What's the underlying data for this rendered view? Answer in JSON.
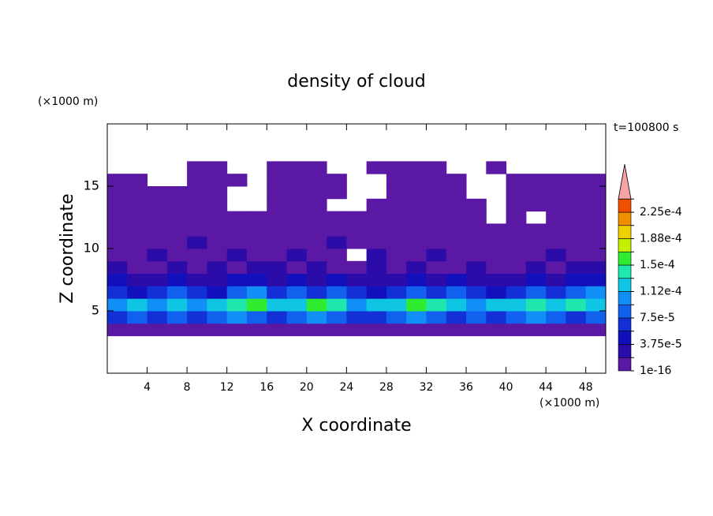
{
  "chart_data": {
    "type": "contour",
    "title": "density of cloud",
    "time_label": "t=100800 s",
    "x_label": "X coordinate",
    "y_label": "Z coordinate",
    "x_unit": "(×1000 m)",
    "y_unit": "(×1000 m)",
    "xlim": [
      0,
      50
    ],
    "ylim": [
      0,
      20
    ],
    "xticks": [
      4,
      8,
      12,
      16,
      20,
      24,
      28,
      32,
      36,
      40,
      44,
      48
    ],
    "yticks": [
      5,
      10,
      15
    ],
    "x": [
      1,
      3,
      5,
      7,
      9,
      11,
      13,
      15,
      17,
      19,
      21,
      23,
      25,
      27,
      29,
      31,
      33,
      35,
      37,
      39,
      41,
      43,
      45,
      47,
      49
    ],
    "y": [
      3.5,
      4.5,
      5.5,
      6.5,
      7.5,
      8.5,
      9.5,
      10.5,
      11.5,
      12.5,
      13.5,
      14.5,
      15.5,
      16.5
    ],
    "values": [
      [
        1e-05,
        1e-05,
        1e-05,
        1e-05,
        1e-05,
        1e-05,
        1e-05,
        1e-05,
        1e-05,
        1e-05,
        1e-05,
        1e-05,
        1e-05,
        1e-05,
        1e-05,
        1e-05,
        1e-05,
        1e-05,
        1e-05,
        1e-05,
        1e-05,
        1e-05,
        1e-05,
        1e-05,
        1e-05
      ],
      [
        6.5e-05,
        8.4e-05,
        6.5e-05,
        8.4e-05,
        6.5e-05,
        8.4e-05,
        0.000103,
        8.4e-05,
        6.5e-05,
        8.4e-05,
        0.000103,
        8.4e-05,
        6.5e-05,
        6.5e-05,
        8.4e-05,
        0.000103,
        8.4e-05,
        6.5e-05,
        8.4e-05,
        6.5e-05,
        8.4e-05,
        0.000103,
        8.4e-05,
        6.5e-05,
        8.4e-05
      ],
      [
        0.000103,
        0.000122,
        0.000103,
        0.000122,
        0.000103,
        0.000122,
        0.00014,
        0.00016,
        0.000122,
        0.000122,
        0.00016,
        0.00014,
        0.000103,
        0.000122,
        0.000122,
        0.00016,
        0.00014,
        0.000122,
        0.000103,
        0.000122,
        0.000122,
        0.00014,
        0.000122,
        0.00014,
        0.000122
      ],
      [
        6.5e-05,
        4.6e-05,
        6.5e-05,
        8.4e-05,
        6.5e-05,
        4.6e-05,
        8.4e-05,
        0.000103,
        6.5e-05,
        8.4e-05,
        6.5e-05,
        8.4e-05,
        6.5e-05,
        4.6e-05,
        6.5e-05,
        8.4e-05,
        6.5e-05,
        8.4e-05,
        6.5e-05,
        4.6e-05,
        6.5e-05,
        8.4e-05,
        6.5e-05,
        8.4e-05,
        0.000103
      ],
      [
        4.6e-05,
        2.8e-05,
        2.8e-05,
        4.6e-05,
        2.8e-05,
        2.8e-05,
        4.6e-05,
        4.6e-05,
        2.8e-05,
        4.6e-05,
        2.8e-05,
        4.6e-05,
        2.8e-05,
        2.8e-05,
        2.8e-05,
        4.6e-05,
        2.8e-05,
        4.6e-05,
        2.8e-05,
        2.8e-05,
        2.8e-05,
        4.6e-05,
        2.8e-05,
        4.6e-05,
        4.6e-05
      ],
      [
        2.8e-05,
        1e-05,
        1e-05,
        2.8e-05,
        1e-05,
        2.8e-05,
        1e-05,
        2.8e-05,
        2.8e-05,
        1e-05,
        2.8e-05,
        1e-05,
        1e-05,
        2.8e-05,
        1e-05,
        2.8e-05,
        1e-05,
        1e-05,
        2.8e-05,
        1e-05,
        1e-05,
        2.8e-05,
        1e-05,
        2.8e-05,
        2.8e-05
      ],
      [
        1e-05,
        1e-05,
        2.8e-05,
        1e-05,
        1e-05,
        1e-05,
        2.8e-05,
        1e-05,
        1e-05,
        2.8e-05,
        1e-05,
        1e-05,
        null,
        2.8e-05,
        1e-05,
        1e-05,
        2.8e-05,
        1e-05,
        1e-05,
        1e-05,
        1e-05,
        1e-05,
        2.8e-05,
        1e-05,
        1e-05
      ],
      [
        1e-05,
        1e-05,
        1e-05,
        1e-05,
        2.8e-05,
        1e-05,
        1e-05,
        1e-05,
        1e-05,
        1e-05,
        1e-05,
        2.8e-05,
        1e-05,
        1e-05,
        1e-05,
        1e-05,
        1e-05,
        1e-05,
        1e-05,
        1e-05,
        1e-05,
        1e-05,
        1e-05,
        1e-05,
        1e-05
      ],
      [
        1e-05,
        1e-05,
        1e-05,
        1e-05,
        1e-05,
        1e-05,
        1e-05,
        1e-05,
        1e-05,
        1e-05,
        1e-05,
        1e-05,
        1e-05,
        1e-05,
        1e-05,
        1e-05,
        1e-05,
        1e-05,
        1e-05,
        1e-05,
        1e-05,
        1e-05,
        1e-05,
        1e-05,
        1e-05
      ],
      [
        1e-05,
        1e-05,
        1e-05,
        1e-05,
        1e-05,
        1e-05,
        1e-05,
        1e-05,
        1e-05,
        1e-05,
        1e-05,
        1e-05,
        1e-05,
        1e-05,
        1e-05,
        1e-05,
        1e-05,
        1e-05,
        1e-05,
        null,
        1e-05,
        null,
        1e-05,
        1e-05,
        1e-05
      ],
      [
        1e-05,
        1e-05,
        1e-05,
        1e-05,
        1e-05,
        1e-05,
        null,
        null,
        1e-05,
        1e-05,
        1e-05,
        null,
        null,
        1e-05,
        1e-05,
        1e-05,
        1e-05,
        1e-05,
        1e-05,
        null,
        1e-05,
        1e-05,
        1e-05,
        1e-05,
        1e-05
      ],
      [
        1e-05,
        1e-05,
        1e-05,
        1e-05,
        1e-05,
        1e-05,
        null,
        null,
        1e-05,
        1e-05,
        1e-05,
        1e-05,
        null,
        null,
        1e-05,
        1e-05,
        1e-05,
        1e-05,
        null,
        null,
        1e-05,
        1e-05,
        1e-05,
        1e-05,
        1e-05
      ],
      [
        1e-05,
        1e-05,
        null,
        null,
        1e-05,
        1e-05,
        1e-05,
        null,
        1e-05,
        1e-05,
        1e-05,
        1e-05,
        null,
        null,
        1e-05,
        1e-05,
        1e-05,
        1e-05,
        null,
        null,
        1e-05,
        1e-05,
        1e-05,
        1e-05,
        1e-05
      ],
      [
        null,
        null,
        null,
        null,
        1e-05,
        1e-05,
        null,
        null,
        1e-05,
        1e-05,
        1e-05,
        null,
        null,
        1e-05,
        1e-05,
        1e-05,
        1e-05,
        null,
        null,
        1e-05,
        null,
        null,
        null,
        null,
        null
      ]
    ],
    "levels": [
      1e-16,
      1.875e-05,
      {
        "value": 3.75e-05,
        "label": "3.75e-5"
      },
      5.625e-05,
      {
        "value": 7.5e-05,
        "label": "7.5e-5"
      },
      9.375e-05,
      {
        "value": 0.0001125,
        "label": "1.12e-4"
      },
      0.00013125,
      {
        "value": 0.00015,
        "label": "1.5e-4"
      },
      0.00016875,
      {
        "value": 0.0001875,
        "label": "1.88e-4"
      },
      0.00020625,
      {
        "value": 0.000225,
        "label": "2.25e-4"
      },
      0.00024375
    ],
    "level_colors": [
      "#5a18a4",
      "#2c0ca8",
      "#1210bc",
      "#1230d6",
      "#1260ee",
      "#1090f6",
      "#10c4e4",
      "#20e8ac",
      "#30ec30",
      "#c4f000",
      "#f0d000",
      "#f09000",
      "#f05000"
    ],
    "extend_color": "#f4a4a4"
  }
}
